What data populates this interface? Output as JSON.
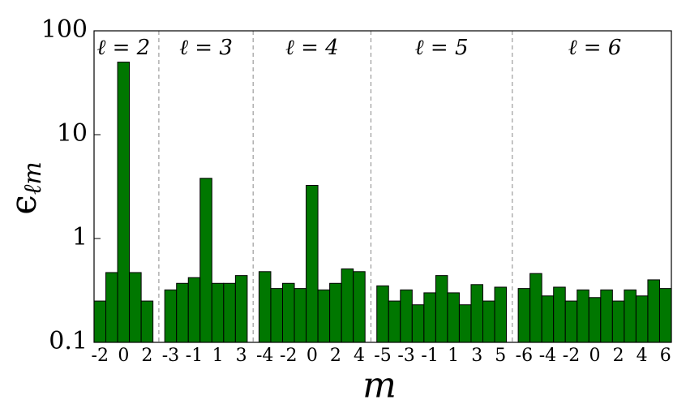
{
  "chart_data": {
    "type": "bar",
    "log_scale": true,
    "color": "#007700",
    "edgecolor": "#000000",
    "xlabel": "m",
    "ylabel": {
      "symbol": "ϵ",
      "subscript": "ℓm"
    },
    "ylim": [
      0.1,
      100
    ],
    "yticks": [
      0.1,
      1,
      10,
      100
    ],
    "groups": [
      {
        "label": "ℓ = 2",
        "categories": [
          "-2",
          null,
          "0",
          null,
          "2"
        ],
        "values": [
          0.25,
          0.47,
          50,
          0.47,
          0.25
        ]
      },
      {
        "label": "ℓ = 3",
        "categories": [
          "-3",
          null,
          "-1",
          null,
          "1",
          null,
          "3"
        ],
        "values": [
          0.32,
          0.37,
          0.42,
          3.8,
          0.37,
          0.37,
          0.44
        ]
      },
      {
        "label": "ℓ = 4",
        "categories": [
          "-4",
          null,
          "-2",
          null,
          "0",
          null,
          "2",
          null,
          "4"
        ],
        "values": [
          0.48,
          0.33,
          0.37,
          0.33,
          3.25,
          0.32,
          0.37,
          0.51,
          0.48
        ]
      },
      {
        "label": "ℓ = 5",
        "categories": [
          "-5",
          null,
          "-3",
          null,
          "-1",
          null,
          "1",
          null,
          "3",
          null,
          "5"
        ],
        "values": [
          0.35,
          0.25,
          0.32,
          0.23,
          0.3,
          0.44,
          0.3,
          0.23,
          0.36,
          0.25,
          0.34
        ]
      },
      {
        "label": "ℓ = 6",
        "categories": [
          "-6",
          null,
          "-4",
          null,
          "-2",
          null,
          "0",
          null,
          "2",
          null,
          "4",
          null,
          "6"
        ],
        "values": [
          0.33,
          0.46,
          0.28,
          0.34,
          0.25,
          0.32,
          0.27,
          0.32,
          0.25,
          0.32,
          0.28,
          0.4,
          0.33
        ]
      }
    ]
  }
}
